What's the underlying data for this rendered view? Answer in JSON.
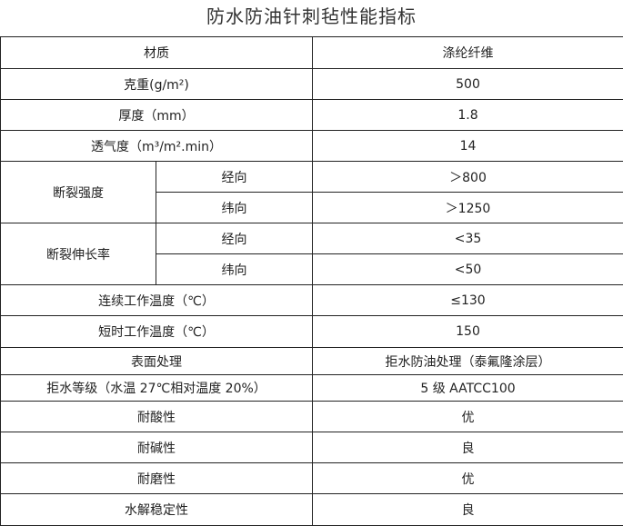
{
  "title": "防水防油针刺毡性能指标",
  "header": {
    "label": "材质",
    "value": "涤纶纤维"
  },
  "rows": [
    {
      "label": "克重(g/m²)",
      "value": "500"
    },
    {
      "label": "厚度（mm）",
      "value": "1.8"
    },
    {
      "label": "透气度（m³/m².min）",
      "value": "14"
    }
  ],
  "strength": {
    "label": "断裂强度",
    "warp_label": "经向",
    "warp_value": "＞800",
    "weft_label": "纬向",
    "weft_value": "＞1250"
  },
  "elongation": {
    "label": "断裂伸长率",
    "warp_label": "经向",
    "warp_value": "<35",
    "weft_label": "纬向",
    "weft_value": "<50"
  },
  "rows2": [
    {
      "label": "连续工作温度（℃）",
      "value": "≤130"
    },
    {
      "label": "短时工作温度（℃）",
      "value": "150"
    },
    {
      "label": "表面处理",
      "value": "拒水防油处理（泰氟隆涂层）"
    },
    {
      "label": "拒水等级（水温 27℃相对温度 20%）",
      "value": "5 级 AATCC100"
    },
    {
      "label": "耐酸性",
      "value": "优"
    },
    {
      "label": "耐碱性",
      "value": "良"
    },
    {
      "label": "耐磨性",
      "value": "优"
    },
    {
      "label": "水解稳定性",
      "value": "良"
    }
  ]
}
